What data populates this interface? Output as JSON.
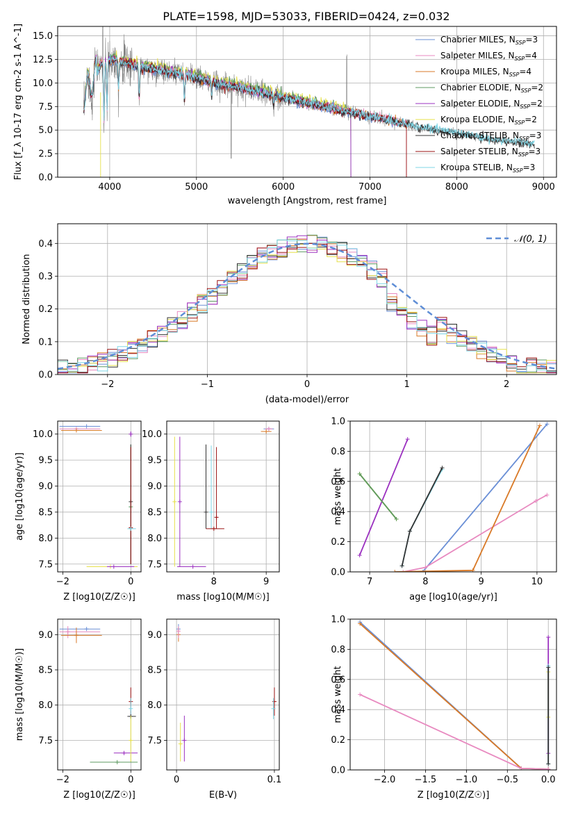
{
  "title": "PLATE=1598, MJD=53033, FIBERID=0424, z=0.032",
  "colors": {
    "cm": "#6a8fd6",
    "sm": "#e88ac0",
    "km": "#d97a28",
    "ce": "#5d9a60",
    "se": "#9b30c0",
    "ke": "#e6e04a",
    "cs": "#333333",
    "ss": "#9a1010",
    "ks": "#7fd6e6",
    "data": "#808080",
    "norm": "#5f8ed6"
  },
  "chart_data": [
    {
      "id": "spectrum",
      "type": "line",
      "xlabel": "wavelength [Angstrom, rest frame]",
      "ylabel": "Flux [f_λ 10^{-17} erg cm^{-2} s^{-1} A^{-1}]",
      "xlim": [
        3400,
        9150
      ],
      "ylim": [
        0,
        16
      ],
      "xticks": [
        4000,
        5000,
        6000,
        7000,
        8000,
        9000
      ],
      "yticks": [
        0.0,
        2.5,
        5.0,
        7.5,
        10.0,
        12.5,
        15.0
      ],
      "continuum_x": [
        3700,
        3900,
        4050,
        4300,
        4600,
        4900,
        5200,
        5600,
        6000,
        6400,
        6800,
        7200,
        7600,
        8000,
        8400,
        8900
      ],
      "continuum_y": [
        8.5,
        12.0,
        12.5,
        11.8,
        11.3,
        10.8,
        10.0,
        9.3,
        8.4,
        7.6,
        6.8,
        6.1,
        5.2,
        4.7,
        4.0,
        3.5
      ],
      "legend": [
        {
          "name": "Chabrier MILES",
          "n": "3",
          "color": "cm"
        },
        {
          "name": "Salpeter MILES",
          "n": "4",
          "color": "sm"
        },
        {
          "name": "Kroupa MILES",
          "n": "4",
          "color": "km"
        },
        {
          "name": "Chabrier ELODIE",
          "n": "2",
          "color": "ce"
        },
        {
          "name": "Salpeter ELODIE",
          "n": "2",
          "color": "se"
        },
        {
          "name": "Kroupa ELODIE",
          "n": "2",
          "color": "ke"
        },
        {
          "name": "Chabrier STELIB",
          "n": "3",
          "color": "cs"
        },
        {
          "name": "Salpeter STELIB",
          "n": "3",
          "color": "ss"
        },
        {
          "name": "Kroupa STELIB",
          "n": "3",
          "color": "ks"
        }
      ]
    },
    {
      "id": "residuals",
      "type": "line",
      "xlabel": "(data-model)/error",
      "ylabel": "Normed distribution",
      "xlim": [
        -2.5,
        2.5
      ],
      "ylim": [
        0,
        0.46
      ],
      "xticks": [
        -2,
        -1,
        0,
        1,
        2
      ],
      "yticks": [
        0.0,
        0.1,
        0.2,
        0.3,
        0.4
      ],
      "legend": "N(0,1)",
      "bin_width": 0.1
    },
    {
      "id": "age_vs_Z",
      "type": "scatter",
      "xlabel": "Z [log10(Z/Z☉)]",
      "ylabel": "age [log10(age/yr)]",
      "xlim": [
        -2.15,
        0.3
      ],
      "ylim": [
        7.35,
        10.25
      ],
      "xticks": [
        -2,
        0
      ],
      "yticks": [
        7.5,
        8.0,
        8.5,
        9.0,
        9.5,
        10.0
      ],
      "points": [
        {
          "c": "cm",
          "x": -1.3,
          "xe": [
            -2.1,
            -0.9
          ],
          "y": 10.15
        },
        {
          "c": "sm",
          "x": -1.6,
          "xe": [
            -2.1,
            -0.9
          ],
          "y": 10.1
        },
        {
          "c": "km",
          "x": -1.6,
          "xe": [
            -2.05,
            -0.85
          ],
          "y": 10.07
        },
        {
          "c": "se",
          "x": 0.0,
          "y": 10.0,
          "ye": [
            9.95,
            10.05
          ]
        },
        {
          "c": "ce",
          "x": 0.0,
          "y": 8.6,
          "ye": [
            7.5,
            9.8
          ]
        },
        {
          "c": "cs",
          "x": 0.0,
          "y": 8.7,
          "ye": [
            7.5,
            9.8
          ]
        },
        {
          "c": "ss",
          "x": 0.0,
          "y": 8.2,
          "ye": [
            7.5,
            9.75
          ]
        },
        {
          "c": "ks",
          "x": 0.0,
          "y": 8.18,
          "xe": [
            -0.1,
            0.15
          ]
        },
        {
          "c": "ke",
          "x": -0.6,
          "xe": [
            -1.3,
            0.2
          ],
          "y": 7.45
        },
        {
          "c": "se",
          "x": -0.5,
          "xe": [
            -0.7,
            0.1
          ],
          "y": 7.45
        }
      ]
    },
    {
      "id": "age_vs_mass",
      "type": "scatter",
      "xlabel": "mass [log10(M/M☉)]",
      "ylabel": "",
      "xlim": [
        7.1,
        9.25
      ],
      "ylim": [
        7.35,
        10.25
      ],
      "xticks": [
        8,
        9
      ],
      "yticks": [
        7.5,
        8.0,
        8.5,
        9.0,
        9.5,
        10.0
      ],
      "points": [
        {
          "c": "cm",
          "x": 9.05,
          "y": 10.1,
          "xe": [
            8.95,
            9.15
          ]
        },
        {
          "c": "sm",
          "x": 9.05,
          "y": 10.1,
          "xe": [
            8.98,
            9.12
          ]
        },
        {
          "c": "km",
          "x": 9.0,
          "y": 10.05,
          "xe": [
            8.9,
            9.1
          ]
        },
        {
          "c": "ke",
          "x": 7.25,
          "y": 8.7,
          "ye": [
            7.45,
            9.95
          ]
        },
        {
          "c": "se",
          "x": 7.35,
          "y": 8.7,
          "ye": [
            7.45,
            9.95
          ]
        },
        {
          "c": "se",
          "x": 7.6,
          "y": 7.45,
          "xe": [
            7.3,
            7.85
          ]
        },
        {
          "c": "cs",
          "x": 7.85,
          "y": 8.5,
          "ye": [
            8.18,
            9.8
          ]
        },
        {
          "c": "ks",
          "x": 7.95,
          "y": 8.5,
          "ye": [
            8.18,
            9.78
          ]
        },
        {
          "c": "ss",
          "x": 8.05,
          "y": 8.4,
          "ye": [
            8.18,
            9.75
          ]
        },
        {
          "c": "ss",
          "x": 8.0,
          "y": 8.18,
          "xe": [
            7.85,
            8.2
          ]
        }
      ]
    },
    {
      "id": "weight_vs_age",
      "type": "line",
      "xlabel": "age [log10(age/yr)]",
      "ylabel": "mass weight",
      "xlim": [
        6.65,
        10.35
      ],
      "ylim": [
        0,
        1
      ],
      "xticks": [
        7,
        8,
        9,
        10
      ],
      "yticks": [
        0.0,
        0.2,
        0.4,
        0.6,
        0.8,
        1.0
      ],
      "series": [
        {
          "c": "cm",
          "x": [
            7.95,
            10.18
          ],
          "y": [
            0.0,
            0.98
          ]
        },
        {
          "c": "sm",
          "x": [
            7.6,
            8.0,
            9.98,
            10.18
          ],
          "y": [
            0.0,
            0.03,
            0.47,
            0.51
          ]
        },
        {
          "c": "km",
          "x": [
            7.45,
            8.85,
            10.05
          ],
          "y": [
            0.0,
            0.01,
            0.97
          ]
        },
        {
          "c": "se",
          "x": [
            6.82,
            7.68
          ],
          "y": [
            0.11,
            0.88
          ]
        },
        {
          "c": "ke",
          "x": [
            6.82,
            7.48
          ],
          "y": [
            0.65,
            0.35
          ]
        },
        {
          "c": "ce",
          "x": [
            6.82,
            7.48
          ],
          "y": [
            0.65,
            0.35
          ]
        },
        {
          "c": "ks",
          "x": [
            7.58,
            7.72,
            8.3
          ],
          "y": [
            0.04,
            0.27,
            0.68
          ]
        },
        {
          "c": "cs",
          "x": [
            7.58,
            7.72,
            8.3
          ],
          "y": [
            0.04,
            0.27,
            0.69
          ]
        }
      ]
    },
    {
      "id": "mass_vs_Z",
      "type": "scatter",
      "xlabel": "Z [log10(Z/Z☉)]",
      "ylabel": "mass [log10(M/M☉)]",
      "xlim": [
        -2.15,
        0.3
      ],
      "ylim": [
        7.08,
        9.22
      ],
      "xticks": [
        -2,
        0
      ],
      "yticks": [
        7.5,
        8.0,
        8.5,
        9.0
      ],
      "points": [
        {
          "c": "cm",
          "x": -1.3,
          "xe": [
            -2.1,
            -0.9
          ],
          "y": 9.08
        },
        {
          "c": "sm",
          "x": -1.85,
          "xe": [
            -2.1,
            -0.9
          ],
          "y": 9.04,
          "ye": [
            8.95,
            9.12
          ]
        },
        {
          "c": "km",
          "x": -1.6,
          "xe": [
            -2.05,
            -0.85
          ],
          "y": 8.99,
          "ye": [
            8.88,
            9.1
          ]
        },
        {
          "c": "ss",
          "x": 0.0,
          "y": 8.05,
          "ye": [
            7.85,
            8.25
          ]
        },
        {
          "c": "ks",
          "x": 0.0,
          "y": 7.95,
          "ye": [
            7.8,
            8.1
          ]
        },
        {
          "c": "cs",
          "x": 0.0,
          "y": 7.84,
          "xe": [
            -0.1,
            0.15
          ]
        },
        {
          "c": "se",
          "x": -0.2,
          "xe": [
            -0.5,
            0.2
          ],
          "y": 7.32
        },
        {
          "c": "ke",
          "x": 0.0,
          "y": 7.5,
          "ye": [
            7.19,
            7.85
          ]
        },
        {
          "c": "ce",
          "x": -0.4,
          "xe": [
            -1.2,
            0.2
          ],
          "y": 7.19
        }
      ]
    },
    {
      "id": "mass_vs_EBV",
      "type": "scatter",
      "xlabel": "E(B-V)",
      "ylabel": "",
      "xlim": [
        -0.01,
        0.105
      ],
      "ylim": [
        7.08,
        9.22
      ],
      "xticks": [
        0.0,
        0.1
      ],
      "yticks": [
        7.5,
        8.0,
        8.5,
        9.0
      ],
      "points": [
        {
          "c": "cm",
          "x": 0.002,
          "y": 9.08,
          "ye": [
            9.0,
            9.15
          ]
        },
        {
          "c": "km",
          "x": 0.002,
          "y": 9.0,
          "ye": [
            8.9,
            9.1
          ]
        },
        {
          "c": "sm",
          "x": 0.002,
          "y": 9.05,
          "ye": [
            8.95,
            9.12
          ]
        },
        {
          "c": "se",
          "x": 0.008,
          "y": 7.5,
          "ye": [
            7.2,
            7.85
          ]
        },
        {
          "c": "ke",
          "x": 0.004,
          "y": 7.45,
          "ye": [
            7.2,
            7.75
          ]
        },
        {
          "c": "ss",
          "x": 0.1,
          "y": 8.05,
          "ye": [
            7.85,
            8.25
          ]
        },
        {
          "c": "ks",
          "x": 0.099,
          "y": 7.95,
          "ye": [
            7.8,
            8.1
          ]
        }
      ]
    },
    {
      "id": "weight_vs_Z",
      "type": "line",
      "xlabel": "Z [log10(Z/Z☉)]",
      "ylabel": "mass weight",
      "xlim": [
        -2.42,
        0.1
      ],
      "ylim": [
        0,
        1
      ],
      "xticks": [
        -2.0,
        -1.5,
        -1.0,
        -0.5,
        0.0
      ],
      "yticks": [
        0.0,
        0.2,
        0.4,
        0.6,
        0.8,
        1.0
      ],
      "series": [
        {
          "c": "cm",
          "x": [
            -2.3,
            -0.33,
            0.0
          ],
          "y": [
            0.98,
            0.01,
            0.005
          ]
        },
        {
          "c": "km",
          "x": [
            -2.3,
            -0.33,
            0.0
          ],
          "y": [
            0.97,
            0.01,
            0.005
          ]
        },
        {
          "c": "sm",
          "x": [
            -2.3,
            -0.33,
            0.0
          ],
          "y": [
            0.5,
            0.01,
            0.005
          ]
        },
        {
          "c": "se",
          "x": [
            0.0,
            0.0
          ],
          "y": [
            0.11,
            0.88
          ]
        },
        {
          "c": "ke",
          "x": [
            0.0,
            0.0
          ],
          "y": [
            0.35,
            0.65
          ]
        },
        {
          "c": "ks",
          "x": [
            0.0,
            0.0
          ],
          "y": [
            0.04,
            0.69
          ]
        },
        {
          "c": "cs",
          "x": [
            0.0,
            0.0
          ],
          "y": [
            0.04,
            0.68
          ]
        }
      ]
    }
  ]
}
